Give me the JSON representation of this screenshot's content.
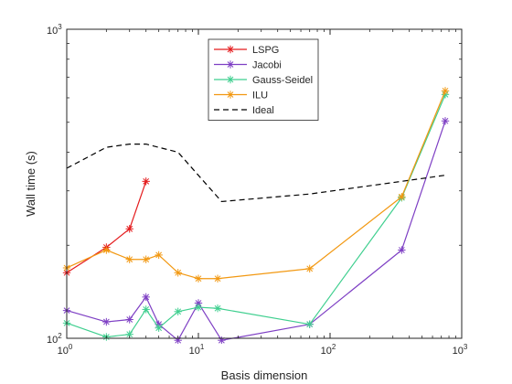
{
  "chart_data": {
    "type": "line",
    "title": "",
    "xlabel": "Basis dimension",
    "ylabel": "Wall time (s)",
    "xscale": "log",
    "yscale": "log",
    "xlim": [
      1,
      1000
    ],
    "ylim": [
      100,
      1000
    ],
    "grid": false,
    "legend_position": "top-center",
    "x_ticks": [
      {
        "value": 1,
        "base": "10",
        "exp": "0"
      },
      {
        "value": 10,
        "base": "10",
        "exp": "1"
      },
      {
        "value": 100,
        "base": "10",
        "exp": "2"
      },
      {
        "value": 1000,
        "base": "10",
        "exp": "3"
      }
    ],
    "y_ticks": [
      {
        "value": 100,
        "base": "10",
        "exp": "2"
      },
      {
        "value": 1000,
        "base": "10",
        "exp": "3"
      }
    ],
    "series": [
      {
        "name": "LSPG",
        "color": "#e41a1c",
        "marker": "asterisk",
        "line": "solid",
        "x": [
          1,
          2,
          3,
          4
        ],
        "y": [
          163,
          197,
          226,
          322
        ]
      },
      {
        "name": "Jacobi",
        "color": "#7e3fc4",
        "marker": "asterisk",
        "line": "solid",
        "x": [
          1,
          2,
          3,
          4,
          5,
          7,
          10,
          15,
          70,
          350,
          750
        ],
        "y": [
          123,
          113,
          115,
          136,
          111,
          98.5,
          130,
          98.5,
          111,
          193,
          505
        ]
      },
      {
        "name": "Gauss-Seidel",
        "color": "#3fcf8f",
        "marker": "asterisk",
        "line": "solid",
        "x": [
          1,
          2,
          3,
          4,
          5,
          7,
          10,
          14,
          70,
          350,
          750
        ],
        "y": [
          112,
          101,
          103,
          124,
          108,
          122,
          126,
          125,
          111,
          285,
          615
        ]
      },
      {
        "name": "ILU",
        "color": "#f29811",
        "marker": "asterisk",
        "line": "solid",
        "x": [
          1,
          2,
          3,
          4,
          5,
          7,
          10,
          14,
          70,
          350,
          750
        ],
        "y": [
          169,
          193,
          180,
          180,
          186,
          163,
          156,
          156,
          168,
          287,
          632
        ]
      },
      {
        "name": "Ideal",
        "color": "#000000",
        "marker": "none",
        "line": "dashed",
        "x": [
          1,
          2,
          3,
          4,
          7,
          15,
          70,
          350,
          750
        ],
        "y": [
          355,
          415,
          425,
          425,
          400,
          277,
          293,
          322,
          337
        ]
      }
    ]
  }
}
